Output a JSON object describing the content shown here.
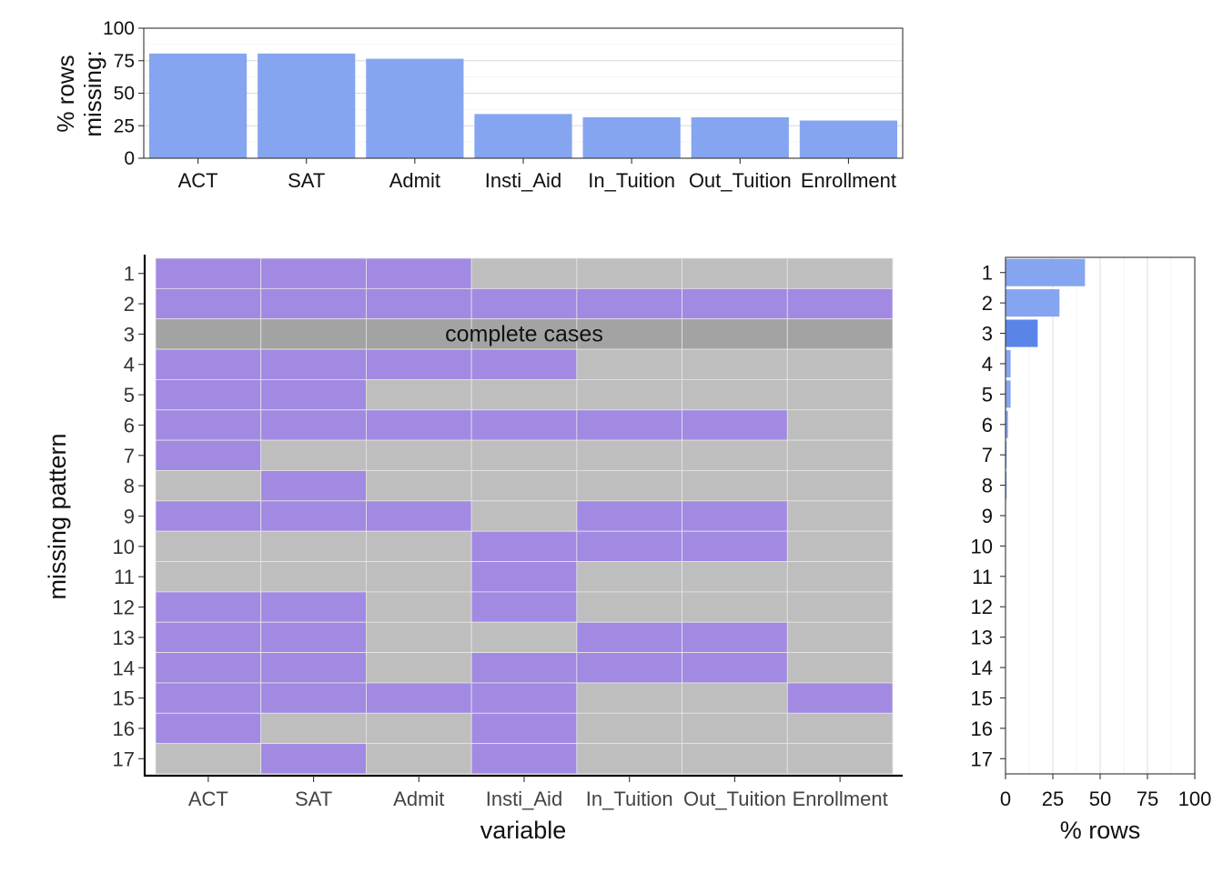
{
  "colors": {
    "bar": "#86A5F0",
    "bar_highlight": "#5A84E8",
    "missing": "#A28AE3",
    "present": "#BEBEBE",
    "complete": "#A3A3A3",
    "tile_border": "#E6E6E6",
    "gridline": "#D9D9D9"
  },
  "chart_data": [
    {
      "type": "bar",
      "id": "missing-by-variable",
      "categories": [
        "ACT",
        "SAT",
        "Admit",
        "Insti_Aid",
        "In_Tuition",
        "Out_Tuition",
        "Enrollment"
      ],
      "values": [
        80.5,
        80.5,
        76.5,
        34,
        31.5,
        31.5,
        29
      ],
      "ylabel_lines": [
        "% rows",
        "missing:"
      ],
      "ylim": [
        0,
        100
      ],
      "yticks": [
        0,
        25,
        50,
        75,
        100
      ],
      "grid": true
    },
    {
      "type": "heatmap",
      "id": "missing-pattern",
      "xlabel": "variable",
      "ylabel": "missing pattern",
      "variables": [
        "ACT",
        "SAT",
        "Admit",
        "Insti_Aid",
        "In_Tuition",
        "Out_Tuition",
        "Enrollment"
      ],
      "patterns": [
        "1",
        "2",
        "3",
        "4",
        "5",
        "6",
        "7",
        "8",
        "9",
        "10",
        "11",
        "12",
        "13",
        "14",
        "15",
        "16",
        "17"
      ],
      "complete_case_row": "3",
      "complete_label": "complete cases",
      "matrix": [
        [
          1,
          1,
          1,
          0,
          0,
          0,
          0
        ],
        [
          1,
          1,
          1,
          1,
          1,
          1,
          1
        ],
        [
          0,
          0,
          0,
          0,
          0,
          0,
          0
        ],
        [
          1,
          1,
          1,
          1,
          0,
          0,
          0
        ],
        [
          1,
          1,
          0,
          0,
          0,
          0,
          0
        ],
        [
          1,
          1,
          1,
          1,
          1,
          1,
          0
        ],
        [
          1,
          0,
          0,
          0,
          0,
          0,
          0
        ],
        [
          0,
          1,
          0,
          0,
          0,
          0,
          0
        ],
        [
          1,
          1,
          1,
          0,
          1,
          1,
          0
        ],
        [
          0,
          0,
          0,
          1,
          1,
          1,
          0
        ],
        [
          0,
          0,
          0,
          1,
          0,
          0,
          0
        ],
        [
          1,
          1,
          0,
          1,
          0,
          0,
          0
        ],
        [
          1,
          1,
          0,
          0,
          1,
          1,
          0
        ],
        [
          1,
          1,
          0,
          1,
          1,
          1,
          0
        ],
        [
          1,
          1,
          1,
          1,
          0,
          0,
          1
        ],
        [
          1,
          0,
          0,
          1,
          0,
          0,
          0
        ],
        [
          0,
          1,
          0,
          1,
          0,
          0,
          0
        ]
      ]
    },
    {
      "type": "bar",
      "id": "rows-by-pattern",
      "orientation": "horizontal",
      "categories": [
        "1",
        "2",
        "3",
        "4",
        "5",
        "6",
        "7",
        "8",
        "9",
        "10",
        "11",
        "12",
        "13",
        "14",
        "15",
        "16",
        "17"
      ],
      "values": [
        42,
        28.5,
        17,
        2.7,
        2.7,
        1.3,
        0.6,
        0.6,
        0,
        0,
        0,
        0,
        0,
        0,
        0,
        0,
        0
      ],
      "highlight_category": "3",
      "xlabel": "% rows",
      "xlim": [
        0,
        100
      ],
      "xticks": [
        0,
        25,
        50,
        75,
        100
      ],
      "grid": true
    }
  ]
}
